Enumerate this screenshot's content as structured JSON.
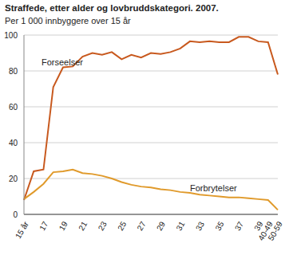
{
  "chart_data": {
    "type": "line",
    "title": "Straffede, etter alder og lovbruddskategori. 2007.",
    "subtitle": "Per 1 000 innbyggere over 15 år",
    "categories": [
      "15 år",
      null,
      "17",
      null,
      "19",
      null,
      "21",
      null,
      "23",
      null,
      "25",
      null,
      "27",
      null,
      "29",
      null,
      "31",
      null,
      "33",
      null,
      "35",
      null,
      "37",
      null,
      "39",
      "40-49",
      "50-59"
    ],
    "series": [
      {
        "name": "Forseelser",
        "color": "#c8591e",
        "values": [
          8,
          24,
          25,
          71,
          82,
          82.5,
          88,
          90,
          89,
          90.5,
          86.5,
          89,
          87.5,
          90,
          89.5,
          90.5,
          92.5,
          96.5,
          96,
          96.5,
          96,
          96,
          99,
          99,
          96.5,
          96,
          78
        ]
      },
      {
        "name": "Forbrytelser",
        "color": "#e09a2b",
        "values": [
          8.5,
          12.5,
          17,
          23.5,
          24,
          25,
          23,
          22.5,
          21.5,
          20,
          18,
          16.5,
          15.5,
          15,
          14,
          13.5,
          12.5,
          12,
          11,
          10.5,
          10,
          9.5,
          9.5,
          9,
          8.5,
          8,
          2.5
        ]
      }
    ],
    "ylim": [
      0,
      100
    ],
    "yticks": [
      0,
      20,
      40,
      60,
      80,
      100
    ],
    "grid": true
  }
}
